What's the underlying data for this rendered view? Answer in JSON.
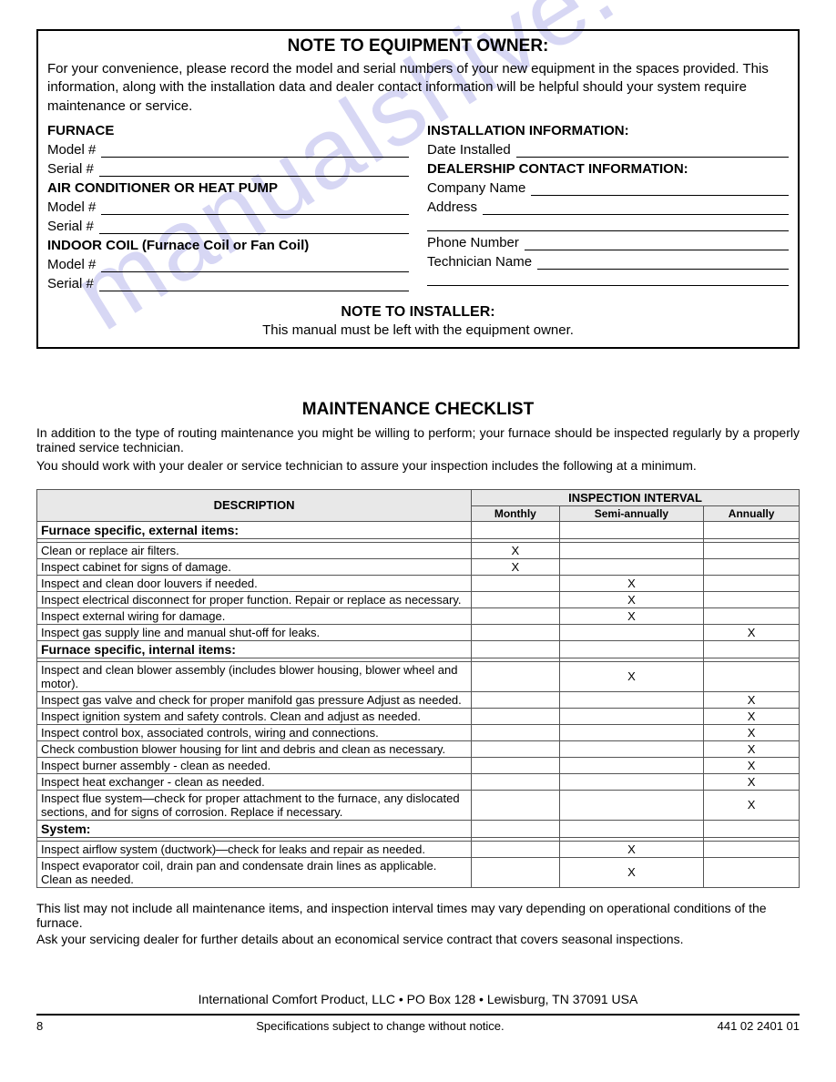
{
  "watermark": "manualshive.com",
  "noteBox": {
    "title": "NOTE TO EQUIPMENT OWNER:",
    "body": "For your convenience, please record the model and serial numbers of your new equipment in the spaces provided.  This information, along with the installation data and dealer contact information will be helpful should your system require maintenance or service.",
    "leftSections": [
      {
        "head": "FURNACE",
        "fields": [
          "Model #",
          "Serial #"
        ]
      },
      {
        "head": "AIR CONDITIONER OR HEAT PUMP",
        "fields": [
          "Model #",
          "Serial #"
        ]
      },
      {
        "head": "INDOOR COIL (Furnace Coil or Fan Coil)",
        "fields": [
          "Model #",
          "Serial #"
        ]
      }
    ],
    "rightSections": [
      {
        "head": "INSTALLATION INFORMATION:",
        "fields": [
          "Date Installed"
        ]
      },
      {
        "head": "DEALERSHIP CONTACT INFORMATION:",
        "fields": [
          "Company Name",
          "Address",
          "",
          "Phone Number",
          "Technician Name",
          ""
        ]
      }
    ],
    "installerTitle": "NOTE TO INSTALLER:",
    "installerBody": "This manual must be left with the equipment owner."
  },
  "checklist": {
    "title": "MAINTENANCE CHECKLIST",
    "intro1": "In addition to the type of routing maintenance you might be willing to perform; your furnace should be inspected regularly by a properly trained service technician.",
    "intro2": "You should work with your dealer or service technician to assure your inspection includes the following at a minimum.",
    "headers": {
      "description": "DESCRIPTION",
      "interval": "INSPECTION INTERVAL",
      "cols": [
        "Monthly",
        "Semi-annually",
        "Annually"
      ]
    },
    "rows": [
      {
        "type": "section",
        "text": "Furnace specific, external items:"
      },
      {
        "type": "thin"
      },
      {
        "type": "item",
        "text": "Clean or replace air filters.",
        "marks": [
          "X",
          "",
          ""
        ]
      },
      {
        "type": "item",
        "text": "Inspect cabinet for signs of damage.",
        "marks": [
          "X",
          "",
          ""
        ]
      },
      {
        "type": "item",
        "text": "Inspect and clean door louvers if needed.",
        "marks": [
          "",
          "X",
          ""
        ]
      },
      {
        "type": "item",
        "text": "Inspect electrical disconnect for proper function. Repair or replace as necessary.",
        "marks": [
          "",
          "X",
          ""
        ]
      },
      {
        "type": "item",
        "text": "Inspect external wiring for damage.",
        "marks": [
          "",
          "X",
          ""
        ]
      },
      {
        "type": "item",
        "text": "Inspect gas supply line and manual shut-off for leaks.",
        "marks": [
          "",
          "",
          "X"
        ]
      },
      {
        "type": "section",
        "text": "Furnace specific, internal items:"
      },
      {
        "type": "thin"
      },
      {
        "type": "item",
        "text": "Inspect and clean blower assembly (includes blower housing, blower wheel and motor).",
        "marks": [
          "",
          "X",
          ""
        ]
      },
      {
        "type": "item",
        "text": "Inspect gas valve and check for proper manifold gas pressure Adjust as needed.",
        "marks": [
          "",
          "",
          "X"
        ]
      },
      {
        "type": "item",
        "text": "Inspect ignition system and safety controls. Clean and adjust as needed.",
        "marks": [
          "",
          "",
          "X"
        ]
      },
      {
        "type": "item",
        "text": "Inspect control box, associated controls, wiring and connections.",
        "marks": [
          "",
          "",
          "X"
        ]
      },
      {
        "type": "item",
        "text": "Check combustion blower housing for lint and debris and clean as necessary.",
        "marks": [
          "",
          "",
          "X"
        ]
      },
      {
        "type": "item",
        "text": "Inspect burner assembly - clean as needed.",
        "marks": [
          "",
          "",
          "X"
        ]
      },
      {
        "type": "item",
        "text": "Inspect heat exchanger  - clean as needed.",
        "marks": [
          "",
          "",
          "X"
        ]
      },
      {
        "type": "item",
        "text": "Inspect flue system—check for proper attachment to the furnace, any dislocated sections, and for signs of corrosion. Replace if necessary.",
        "marks": [
          "",
          "",
          "X"
        ]
      },
      {
        "type": "section",
        "text": "System:"
      },
      {
        "type": "thin"
      },
      {
        "type": "item",
        "text": "Inspect airflow system (ductwork)—check for leaks and repair as needed.",
        "marks": [
          "",
          "X",
          ""
        ]
      },
      {
        "type": "item",
        "text": "Inspect evaporator coil, drain pan and condensate drain lines as applicable. Clean as needed.",
        "marks": [
          "",
          "X",
          ""
        ]
      }
    ],
    "after1": "This list may not include all maintenance items, and inspection interval times may vary depending on operational conditions of the furnace.",
    "after2": "Ask your servicing dealer for further details about an economical service contract that covers seasonal inspections."
  },
  "footer": {
    "company": "International Comfort Product, LLC • PO Box 128 • Lewisburg, TN  37091 USA",
    "pageNum": "8",
    "centerText": "Specifications subject to change without notice.",
    "docNum": "441 02 2401 01"
  }
}
